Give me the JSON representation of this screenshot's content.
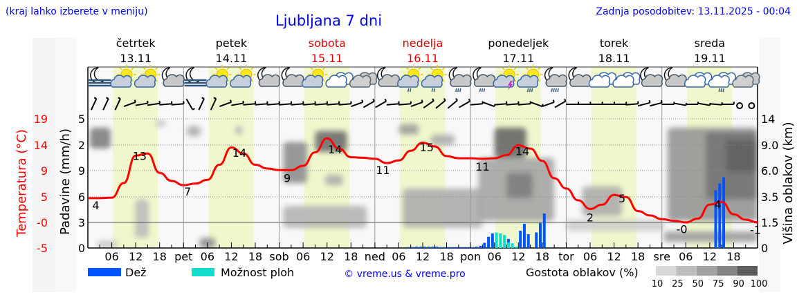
{
  "header": {
    "menu_hint": "(kraj lahko izberete v meniju)",
    "title": "Ljubljana 7 dni",
    "updated": "Zadnja posodobitev: 13.11.2025 - 00:04"
  },
  "days": [
    {
      "name": "četrtek",
      "date": "13.11",
      "weekend": false,
      "abbr": ""
    },
    {
      "name": "petek",
      "date": "14.11",
      "weekend": false,
      "abbr": "pet"
    },
    {
      "name": "sobota",
      "date": "15.11",
      "weekend": true,
      "abbr": "sob"
    },
    {
      "name": "nedelja",
      "date": "16.11",
      "weekend": true,
      "abbr": "ned"
    },
    {
      "name": "ponedeljek",
      "date": "17.11",
      "weekend": false,
      "abbr": "pon"
    },
    {
      "name": "torek",
      "date": "18.11",
      "weekend": false,
      "abbr": "tor"
    },
    {
      "name": "sreda",
      "date": "19.11",
      "weekend": false,
      "abbr": "sre"
    }
  ],
  "hour_labels": [
    "06",
    "12",
    "18"
  ],
  "icons": [
    "moon-fog",
    "sun-cloud",
    "sun-cloud",
    "moon-cloud",
    "moon-fog",
    "sun-cloud",
    "sun-cloud",
    "moon-cloud",
    "moon-cloud",
    "sun-cloud",
    "overcast-light",
    "overcast",
    "moon-cloud",
    "sun-cloud-drizzle",
    "sun-cloud-drizzle",
    "moon-cloud-rain",
    "moon-cloud-rain",
    "sun-cloud-thunder",
    "sun-cloud-rain",
    "moon-cloud-heavy-rain",
    "moon-cloud",
    "overcast-light",
    "overcast-light",
    "moon-cloud",
    "moon-cloud",
    "overcast-light",
    "overcast-light-rain",
    "overcast"
  ],
  "colors": {
    "temperature": "#ff0000",
    "rain": "#0055ff",
    "showers": "#11ddcc",
    "title": "#0000ff",
    "weekend": "#dd0000",
    "daylight": "#f0f7cc"
  },
  "legend": {
    "rain": "Dež",
    "showers": "Možnost ploh",
    "credit": "© vreme.us & vreme.pro",
    "cloud_density_title": "Gostota oblakov (%)",
    "cloud_density_levels": [
      "10",
      "25",
      "50",
      "75",
      "90",
      "100"
    ]
  },
  "chart_data": {
    "type": "line",
    "axes": {
      "temperature": {
        "label": "Temperatura (°C)",
        "ticks": [
          "19",
          "14",
          "9",
          "5",
          "-0",
          "-5"
        ]
      },
      "precipitation": {
        "label": "Padavine (mm/h)",
        "ticks": [
          "5",
          "2",
          "9",
          "6",
          "3",
          "0"
        ],
        "ylim": [
          0,
          15
        ]
      },
      "cloud_height": {
        "label": "Višina oblakov (km)",
        "ticks": [
          "14",
          "9.0",
          "6.0",
          "3.5",
          "1.5",
          "0"
        ]
      }
    },
    "x_range_hours": [
      0,
      168
    ],
    "temperature_series": {
      "step_hours": 3,
      "values": [
        4.3,
        4.3,
        4.4,
        7.1,
        12.2,
        12.6,
        9.0,
        7.5,
        6.7,
        7.0,
        7.7,
        10.5,
        13.7,
        12.6,
        10.5,
        9.8,
        9.5,
        9.5,
        10.3,
        12.8,
        15.4,
        13.5,
        11.9,
        11.8,
        11.6,
        10.8,
        11.3,
        13.1,
        14.6,
        13.9,
        12.1,
        11.7,
        11.7,
        11.6,
        11.7,
        12.3,
        14.1,
        13.5,
        11.2,
        8.0,
        6.1,
        3.9,
        2.3,
        3.1,
        4.9,
        4.5,
        1.9,
        1.1,
        0.4,
        0.1,
        -0.2,
        0.5,
        3.1,
        3.6,
        1.3,
        0.3,
        -0.2
      ]
    },
    "temperature_labels": [
      {
        "h": 2,
        "t": 2.2,
        "text": "4"
      },
      {
        "h": 13,
        "t": 11.4,
        "text": "13"
      },
      {
        "h": 25,
        "t": 4.8,
        "text": "7"
      },
      {
        "h": 38,
        "t": 12.0,
        "text": "14"
      },
      {
        "h": 50,
        "t": 7.3,
        "text": "9"
      },
      {
        "h": 62,
        "t": 12.6,
        "text": "14"
      },
      {
        "h": 74,
        "t": 8.8,
        "text": "11"
      },
      {
        "h": 85,
        "t": 13.0,
        "text": "15"
      },
      {
        "h": 99,
        "t": 9.4,
        "text": "11"
      },
      {
        "h": 109,
        "t": 12.3,
        "text": "14"
      },
      {
        "h": 126,
        "t": 0.0,
        "text": "2"
      },
      {
        "h": 134,
        "t": 3.5,
        "text": "5"
      },
      {
        "h": 149,
        "t": -2.2,
        "text": "-0"
      },
      {
        "h": 158,
        "t": 2.4,
        "text": "4"
      },
      {
        "h": 167.5,
        "t": -2.3,
        "text": "-1"
      }
    ],
    "precipitation": [
      {
        "h": 81,
        "mm": 0.1,
        "kind": "rain"
      },
      {
        "h": 82,
        "mm": 0.1,
        "kind": "rain"
      },
      {
        "h": 83,
        "mm": 0.15,
        "kind": "rain"
      },
      {
        "h": 84,
        "mm": 0.15,
        "kind": "rain"
      },
      {
        "h": 85,
        "mm": 0.15,
        "kind": "rain"
      },
      {
        "h": 86,
        "mm": 0.15,
        "kind": "rain"
      },
      {
        "h": 87,
        "mm": 0.15,
        "kind": "rain"
      },
      {
        "h": 88,
        "mm": 0.15,
        "kind": "rain"
      },
      {
        "h": 89,
        "mm": 0.1,
        "kind": "rain"
      },
      {
        "h": 90,
        "mm": 0.1,
        "kind": "rain"
      },
      {
        "h": 91,
        "mm": 0.1,
        "kind": "rain"
      },
      {
        "h": 92,
        "mm": 0.1,
        "kind": "rain"
      },
      {
        "h": 93,
        "mm": 0.1,
        "kind": "rain"
      },
      {
        "h": 94,
        "mm": 0.1,
        "kind": "rain"
      },
      {
        "h": 95,
        "mm": 0.1,
        "kind": "rain"
      },
      {
        "h": 96,
        "mm": 0.1,
        "kind": "rain"
      },
      {
        "h": 97,
        "mm": 0.1,
        "kind": "rain"
      },
      {
        "h": 98,
        "mm": 0.15,
        "kind": "rain"
      },
      {
        "h": 99,
        "mm": 0.25,
        "kind": "rain"
      },
      {
        "h": 100,
        "mm": 0.6,
        "kind": "rain"
      },
      {
        "h": 101,
        "mm": 1.3,
        "kind": "rain"
      },
      {
        "h": 102,
        "mm": 1.7,
        "kind": "rain"
      },
      {
        "h": 103,
        "mm": 1.8,
        "kind": "showers"
      },
      {
        "h": 104,
        "mm": 1.7,
        "kind": "showers"
      },
      {
        "h": 105,
        "mm": 1.5,
        "kind": "showers"
      },
      {
        "h": 106,
        "mm": 1.05,
        "kind": "mixed"
      },
      {
        "h": 107,
        "mm": 0.55,
        "kind": "showers"
      },
      {
        "h": 108,
        "mm": 0.15,
        "kind": "showers"
      },
      {
        "h": 109,
        "mm": 2.0,
        "kind": "rain"
      },
      {
        "h": 110,
        "mm": 2.8,
        "kind": "rain"
      },
      {
        "h": 111,
        "mm": 1.6,
        "kind": "rain"
      },
      {
        "h": 113,
        "mm": 1.8,
        "kind": "rain"
      },
      {
        "h": 114,
        "mm": 2.9,
        "kind": "rain"
      },
      {
        "h": 115,
        "mm": 4.0,
        "kind": "rain"
      },
      {
        "h": 158,
        "mm": 6.7,
        "kind": "rain"
      },
      {
        "h": 159,
        "mm": 7.5,
        "kind": "rain"
      },
      {
        "h": 160,
        "mm": 8.2,
        "kind": "rain"
      }
    ],
    "cloud_density": [
      [
        0.5,
        5.7,
        8.6,
        12.3,
        70
      ],
      [
        17,
        19.6,
        12.5,
        13.8,
        25
      ],
      [
        24.8,
        28.3,
        10.7,
        12.6,
        40
      ],
      [
        37,
        38.7,
        11,
        12.6,
        40
      ],
      [
        11.8,
        15.3,
        0.6,
        3.3,
        30
      ],
      [
        2.3,
        7.5,
        0.05,
        0.4,
        30
      ],
      [
        28,
        32,
        0.0,
        0.6,
        60
      ],
      [
        49,
        55,
        4.8,
        9.6,
        60
      ],
      [
        57,
        65,
        8.2,
        11.7,
        80
      ],
      [
        59.5,
        64,
        4.6,
        5.6,
        40
      ],
      [
        49,
        70,
        1.18,
        2.8,
        35
      ],
      [
        78,
        83,
        11,
        13,
        50
      ],
      [
        79,
        99,
        1.2,
        4.3,
        40
      ],
      [
        86,
        92,
        9,
        11,
        40
      ],
      [
        98,
        117,
        1.6,
        7.5,
        45
      ],
      [
        102,
        110,
        7.5,
        12.3,
        85
      ],
      [
        105,
        111.6,
        3.4,
        5.8,
        70
      ],
      [
        124,
        134,
        2,
        4.5,
        40
      ],
      [
        120,
        144.5,
        1.0,
        1.7,
        20
      ],
      [
        145.4,
        168,
        1.6,
        12.3,
        55
      ],
      [
        155,
        168,
        3.3,
        11.5,
        75
      ],
      [
        160,
        168,
        5.8,
        10,
        90
      ],
      [
        144.5,
        168,
        0.35,
        0.98,
        50
      ]
    ],
    "wind_staff_angles": [
      65,
      65,
      65,
      20,
      10,
      8,
      5,
      5,
      -60,
      65,
      65,
      20,
      10,
      5,
      5,
      5,
      5,
      5,
      5,
      5,
      5,
      5,
      20,
      30,
      30,
      5,
      5,
      20,
      35,
      40,
      40,
      30,
      5,
      -20,
      5,
      5,
      5,
      -20,
      20,
      30,
      0,
      0,
      0,
      0,
      0,
      5,
      15,
      15,
      0,
      -10,
      0,
      -10,
      -5,
      0,
      null,
      null
    ],
    "daylight_hours": [
      6.3,
      17.6
    ],
    "grid": true
  }
}
